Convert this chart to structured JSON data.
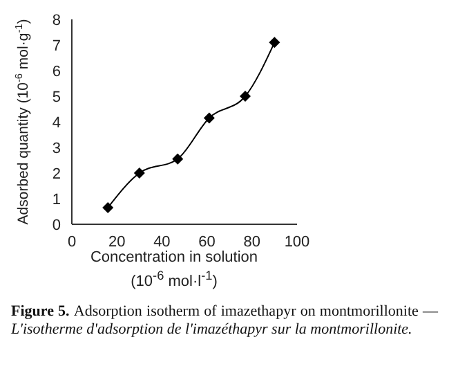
{
  "chart_data": {
    "type": "line",
    "xlabel": "Concentration in solution (10$^{-6}$ mol·l$^{-1}$)",
    "ylabel": "Adsorbed quantity (10$^{-6}$ mol·g$^{-1}$)",
    "x": [
      16,
      30,
      47,
      61,
      77,
      90
    ],
    "series": [
      {
        "color": "#000000",
        "values": [
          0.65,
          2.0,
          2.55,
          4.15,
          5.0,
          7.1
        ]
      }
    ],
    "xlim": [
      0,
      100
    ],
    "xticks": [
      0,
      20,
      40,
      60,
      80,
      100
    ],
    "ylim": [
      0,
      8
    ],
    "yticks": [
      0,
      1,
      2,
      3,
      4,
      5,
      6,
      7,
      8
    ],
    "grid": false,
    "legend": false,
    "marker": "diamond",
    "line_style": "solid",
    "annotations": [
      "Figure 5.",
      "Adsorption isotherm of imazethapyr on montmorillonite — ",
      "L'isotherme d'adsorption de l'imazéthapyr sur la montmorillonite."
    ]
  }
}
